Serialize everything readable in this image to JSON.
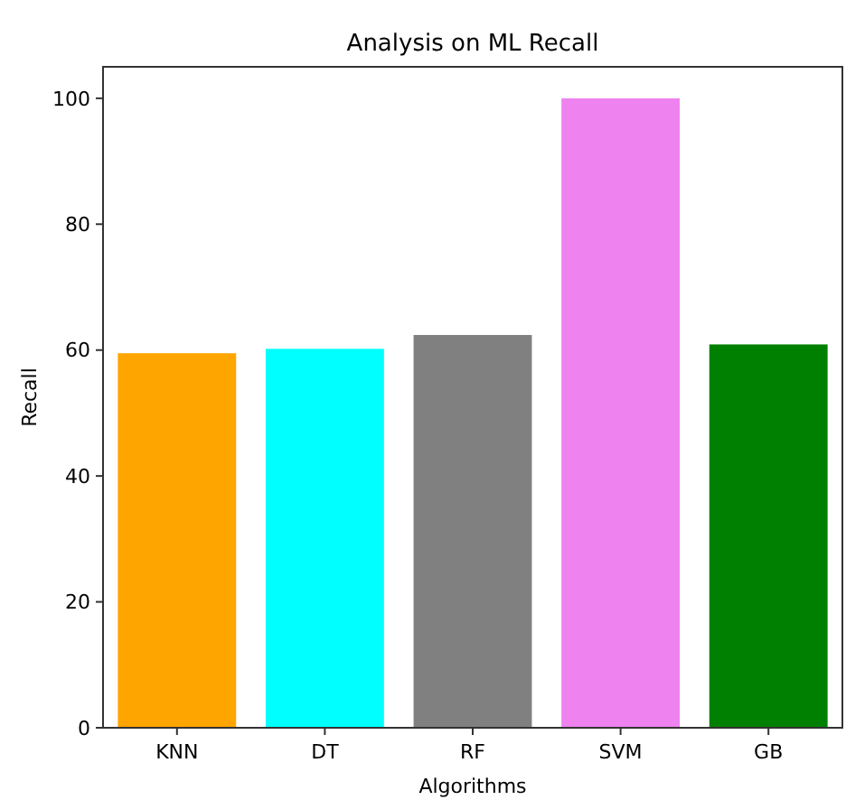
{
  "chart_data": {
    "type": "bar",
    "title": "Analysis on ML Recall",
    "xlabel": "Algorithms",
    "ylabel": "Recall",
    "categories": [
      "KNN",
      "DT",
      "RF",
      "SVM",
      "GB"
    ],
    "values": [
      59.5,
      60.2,
      62.4,
      100,
      60.9
    ],
    "colors": [
      "#ffa500",
      "#00ffff",
      "#808080",
      "#ee82ee",
      "#008000"
    ],
    "ylim": [
      0,
      105
    ],
    "yticks": [
      0,
      20,
      40,
      60,
      80,
      100
    ],
    "grid": false
  }
}
